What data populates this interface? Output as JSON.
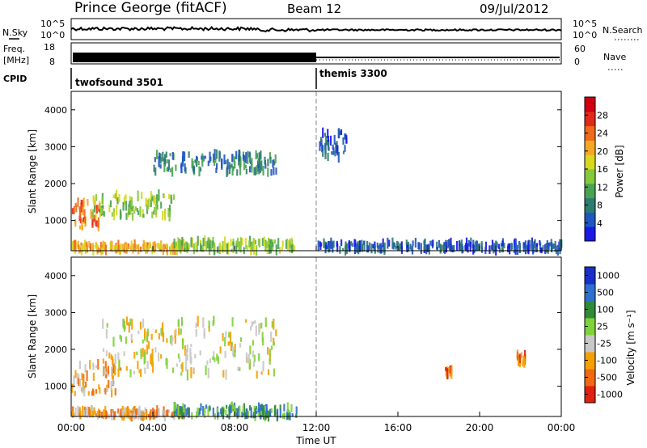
{
  "header": {
    "station": "Prince George (fitACF)",
    "beam": "Beam 12",
    "date": "09/Jul/2012"
  },
  "panels": {
    "noise": {
      "left_label": "N.Sky",
      "right_label": "N.Search",
      "left_ticks": [
        "10^5",
        "10^0"
      ],
      "right_ticks": [
        "10^5",
        "10^0"
      ]
    },
    "freq": {
      "left_label_line1": "Freq.",
      "left_label_line2": "[MHz]",
      "left_ticks": [
        "18",
        "8"
      ],
      "right_label": "Nave",
      "right_ticks": [
        "60",
        "0"
      ]
    },
    "cpid": {
      "label": "CPID",
      "segments": [
        {
          "name": "twofsound 3501",
          "start_hour": 0
        },
        {
          "name": "themis 3300",
          "start_hour": 12
        }
      ]
    },
    "power": {
      "ylabel": "Slant Range [km]",
      "colorbar_label": "Power [dB]"
    },
    "velocity": {
      "ylabel": "Slant Range [km]",
      "colorbar_label": "Velocity [m s⁻¹]"
    }
  },
  "chart_data": [
    {
      "type": "line",
      "name": "noise",
      "xlabel": "Time UT",
      "xlim": [
        0,
        24
      ]
    },
    {
      "type": "line",
      "name": "frequency",
      "xlim": [
        0,
        24
      ],
      "segments": [
        {
          "x_start": 0,
          "x_end": 12,
          "freq_mhz_range": [
            10,
            14
          ]
        },
        {
          "x_start": 12,
          "x_end": 24,
          "freq_mhz": 10
        }
      ]
    },
    {
      "type": "heatmap",
      "name": "power",
      "x_unit": "hours UT",
      "y_unit": "km",
      "xlim": [
        0,
        24
      ],
      "ylim": [
        180,
        4500
      ],
      "yticks": [
        1000,
        2000,
        3000,
        4000
      ],
      "colorbar": {
        "ticks": [
          4,
          8,
          12,
          16,
          20,
          24,
          28
        ],
        "range": [
          0,
          32
        ],
        "colors": [
          "#1a1ae6",
          "#1f57c2",
          "#2d7d6e",
          "#4aa352",
          "#86c93a",
          "#d7d81f",
          "#f5a623",
          "#ef6a1a",
          "#e02a1a",
          "#d00010"
        ]
      },
      "regions": [
        {
          "x": [
            0.0,
            5.5
          ],
          "y": [
            180,
            350
          ],
          "value": 22
        },
        {
          "x": [
            5.0,
            11.0
          ],
          "y": [
            180,
            450
          ],
          "value": 14
        },
        {
          "x": [
            0.0,
            1.5
          ],
          "y": [
            800,
            1500
          ],
          "value": 24
        },
        {
          "x": [
            1.0,
            5.0
          ],
          "y": [
            1100,
            1700
          ],
          "value": 14
        },
        {
          "x": [
            4.0,
            10.0
          ],
          "y": [
            2300,
            2800
          ],
          "value": 8
        },
        {
          "x": [
            12.0,
            13.5
          ],
          "y": [
            2700,
            3400
          ],
          "value": 4
        },
        {
          "x": [
            12.0,
            24.0
          ],
          "y": [
            180,
            400
          ],
          "value": 4
        }
      ]
    },
    {
      "type": "heatmap",
      "name": "velocity",
      "x_unit": "hours UT",
      "y_unit": "km",
      "xlim": [
        0,
        24
      ],
      "ylim": [
        180,
        4500
      ],
      "yticks": [
        1000,
        2000,
        3000,
        4000
      ],
      "xticks": [
        "00:00",
        "04:00",
        "08:00",
        "12:00",
        "16:00",
        "20:00",
        "00:00"
      ],
      "colorbar": {
        "ticks": [
          "1000",
          "500",
          "100",
          "25",
          "-25",
          "-100",
          "-500",
          "-1000"
        ],
        "colors": [
          "#1a2fc8",
          "#2f6fd0",
          "#2f8a3a",
          "#7fd23a",
          "#c8c8c8",
          "#f5a000",
          "#ef6a10",
          "#e02010"
        ]
      },
      "regions": [
        {
          "x": [
            0.0,
            2.5
          ],
          "y": [
            800,
            1600
          ],
          "value": -100
        },
        {
          "x": [
            0.0,
            5.5
          ],
          "y": [
            180,
            350
          ],
          "value": -100
        },
        {
          "x": [
            5.0,
            11.0
          ],
          "y": [
            180,
            450
          ],
          "value": 100
        },
        {
          "x": [
            1.5,
            10.0
          ],
          "y": [
            1300,
            2800
          ],
          "value": 0
        },
        {
          "x": [
            18.3,
            18.6
          ],
          "y": [
            1300,
            1500
          ],
          "value": -500
        },
        {
          "x": [
            21.8,
            22.2
          ],
          "y": [
            1600,
            1850
          ],
          "value": -500
        }
      ]
    }
  ]
}
